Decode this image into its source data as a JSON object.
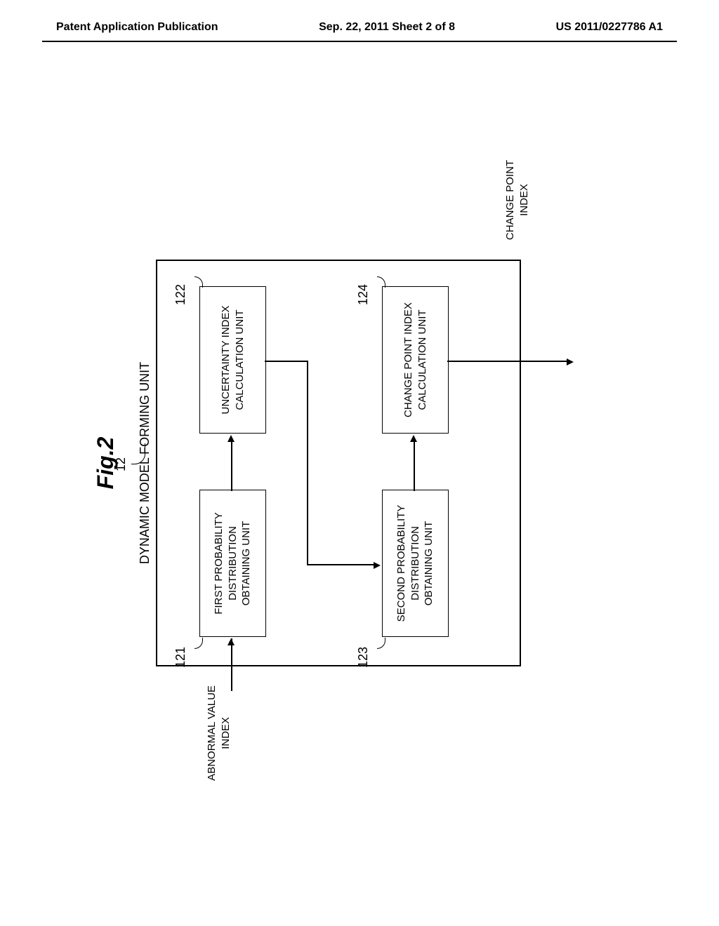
{
  "header": {
    "left": "Patent Application Publication",
    "center": "Sep. 22, 2011  Sheet 2 of 8",
    "right": "US 2011/0227786 A1"
  },
  "figure": {
    "label": "Fig.2",
    "main_ref": "12",
    "main_title": "DYNAMIC MODEL FORMING UNIT",
    "input_label": "ABNORMAL VALUE\nINDEX",
    "output_label": "CHANGE POINT\nINDEX",
    "boxes": {
      "box_121": {
        "ref": "121",
        "text": "FIRST PROBABILITY\nDISTRIBUTION\nOBTAINING UNIT"
      },
      "box_122": {
        "ref": "122",
        "text": "UNCERTAINTY INDEX\nCALCULATION UNIT"
      },
      "box_123": {
        "ref": "123",
        "text": "SECOND PROBABILITY\nDISTRIBUTION\nOBTAINING UNIT"
      },
      "box_124": {
        "ref": "124",
        "text": "CHANGE POINT INDEX\nCALCULATION UNIT"
      }
    }
  }
}
